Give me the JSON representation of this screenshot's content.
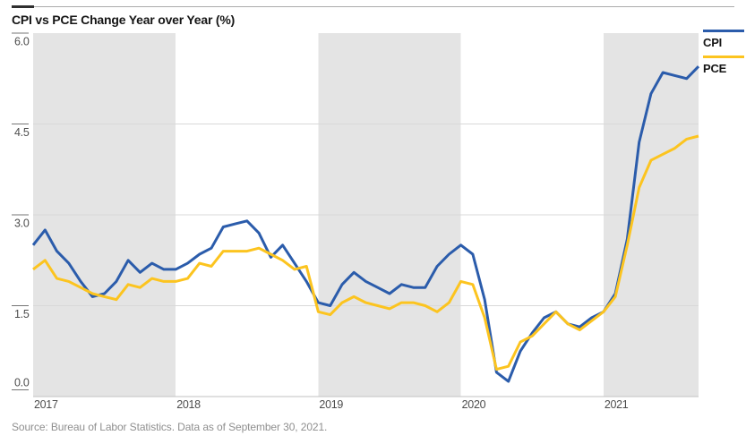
{
  "header": {
    "title": "CPI vs PCE Change Year over Year (%)"
  },
  "source": {
    "text": "Source: Bureau of Labor Statistics. Data as of September 30, 2021."
  },
  "colors": {
    "band": "#e4e4e4",
    "gridline": "#d9d9d9",
    "axis_line": "#c2c2c2",
    "tick": "#757575",
    "axis_label": "#4d4d4d",
    "accent_bar": "#2f2f2f",
    "rule": "#ababab",
    "cpi_line": "#2b5cab",
    "pce_line": "#fcc41f"
  },
  "chart_data": {
    "type": "line",
    "title": "CPI vs PCE Change Year over Year (%)",
    "x_frequency": "monthly",
    "x_start": "2017-01",
    "x_end": "2021-09",
    "year_labels": [
      "2017",
      "2018",
      "2019",
      "2020",
      "2021"
    ],
    "shaded_year_indexes": [
      0,
      2,
      4
    ],
    "y_tick_values": [
      6.0,
      4.5,
      3.0,
      1.5,
      0.0
    ],
    "y_tick_labels": [
      "6.0",
      "4.5",
      "3.0",
      "1.5",
      "0.0"
    ],
    "ylim": [
      0,
      6
    ],
    "grid": "horizontal",
    "legend_position": "top-right",
    "series": [
      {
        "name": "CPI",
        "color": "#2b5cab",
        "values": [
          2.5,
          2.75,
          2.4,
          2.2,
          1.9,
          1.65,
          1.7,
          1.9,
          2.25,
          2.05,
          2.2,
          2.1,
          2.1,
          2.2,
          2.35,
          2.45,
          2.8,
          2.85,
          2.9,
          2.7,
          2.3,
          2.5,
          2.2,
          1.9,
          1.55,
          1.5,
          1.85,
          2.05,
          1.9,
          1.8,
          1.7,
          1.85,
          1.8,
          1.8,
          2.15,
          2.35,
          2.5,
          2.35,
          1.6,
          0.4,
          0.25,
          0.75,
          1.05,
          1.3,
          1.4,
          1.2,
          1.15,
          1.3,
          1.4,
          1.7,
          2.6,
          4.2,
          5.0,
          5.35,
          5.3,
          5.25,
          5.45
        ]
      },
      {
        "name": "PCE",
        "color": "#fcc41f",
        "values": [
          2.1,
          2.25,
          1.95,
          1.9,
          1.8,
          1.7,
          1.65,
          1.6,
          1.85,
          1.8,
          1.95,
          1.9,
          1.9,
          1.95,
          2.2,
          2.15,
          2.4,
          2.4,
          2.4,
          2.45,
          2.35,
          2.25,
          2.1,
          2.15,
          1.4,
          1.35,
          1.55,
          1.65,
          1.55,
          1.5,
          1.45,
          1.55,
          1.55,
          1.5,
          1.4,
          1.55,
          1.9,
          1.85,
          1.3,
          0.45,
          0.5,
          0.9,
          1.0,
          1.2,
          1.4,
          1.2,
          1.1,
          1.25,
          1.4,
          1.65,
          2.5,
          3.45,
          3.9,
          4.0,
          4.1,
          4.25,
          4.3
        ]
      }
    ]
  }
}
